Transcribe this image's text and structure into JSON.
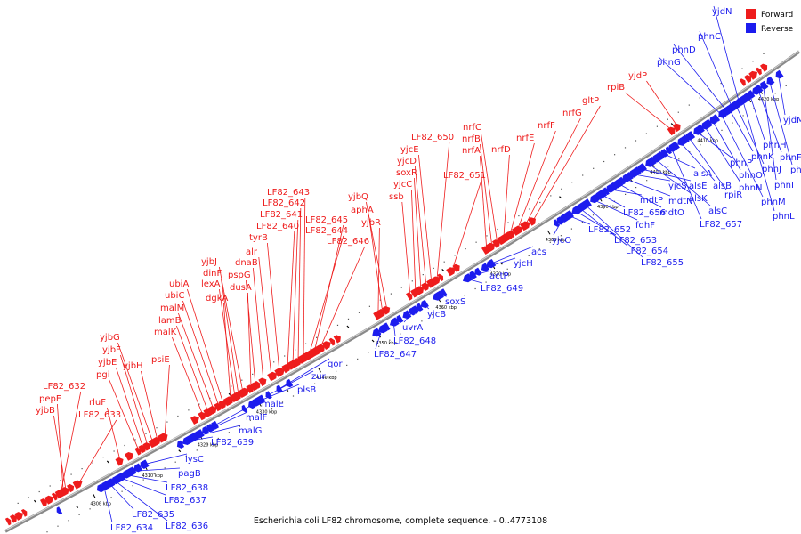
{
  "title": "Escherichia coli LF82 chromosome, complete sequence. - 0..4773108",
  "legend": [
    {
      "label": "Forward",
      "color": "#ee1c1c"
    },
    {
      "label": "Reverse",
      "color": "#1c1cee"
    }
  ],
  "colors": {
    "forward": "#ee1c1c",
    "reverse": "#1c1cee",
    "axis": "#8a8a8a"
  },
  "ticks": [
    "4300 kbp",
    "4310 kbp",
    "4320 kbp",
    "4330 kbp",
    "4340 kbp",
    "4350 kbp",
    "4360 kbp",
    "4370 kbp",
    "4380 kbp",
    "4390 kbp",
    "4400 kbp",
    "4410 kbp",
    "4420 kbp"
  ],
  "forward_genes": [
    "LF82_632",
    "pepE",
    "yjbB",
    "LF82_633",
    "rluF",
    "pgi",
    "yjbE",
    "yjbF",
    "yjbG",
    "yjbH",
    "psiE",
    "malK",
    "lamB",
    "malM",
    "ubiC",
    "ubiA",
    "dgkA",
    "lexA",
    "dinF",
    "yjbJ",
    "dusA",
    "pspG",
    "dnaB",
    "alr",
    "tyrB",
    "LF82_640",
    "LF82_641",
    "LF82_642",
    "LF82_643",
    "LF82_644",
    "LF82_645",
    "LF82_646",
    "yjbR",
    "aphA",
    "yjbQ",
    "ssb",
    "yjcC",
    "soxR",
    "yjcD",
    "yjcE",
    "LF82_650",
    "LF82_651",
    "nrfA",
    "nrfB",
    "nrfC",
    "nrfD",
    "nrfE",
    "nrfF",
    "nrfG",
    "gltP",
    "rpiB",
    "yjdP"
  ],
  "reverse_genes": [
    "LF82_634",
    "LF82_635",
    "LF82_636",
    "LF82_637",
    "LF82_638",
    "pagB",
    "lysC",
    "LF82_639",
    "malG",
    "malF",
    "malE",
    "plsB",
    "zur",
    "qor",
    "LF82_647",
    "LF82_648",
    "uvrA",
    "yjcB",
    "soxS",
    "LF82_649",
    "actP",
    "yjcH",
    "acs",
    "yjcO",
    "LF82_652",
    "LF82_653",
    "LF82_654",
    "LF82_655",
    "fdhF",
    "LF82_656",
    "mdtP",
    "mdtO",
    "mdtN",
    "yjcS",
    "alsE",
    "alsK",
    "alsC",
    "alsA",
    "LF82_657",
    "alsB",
    "rpiR",
    "phnP",
    "phnN",
    "phnO",
    "phnM",
    "phnK",
    "phnJ",
    "phnL",
    "phnH",
    "phnF",
    "phnI",
    "phnE",
    "phnG",
    "phnD",
    "phnC",
    "yjdN",
    "yjdM"
  ]
}
